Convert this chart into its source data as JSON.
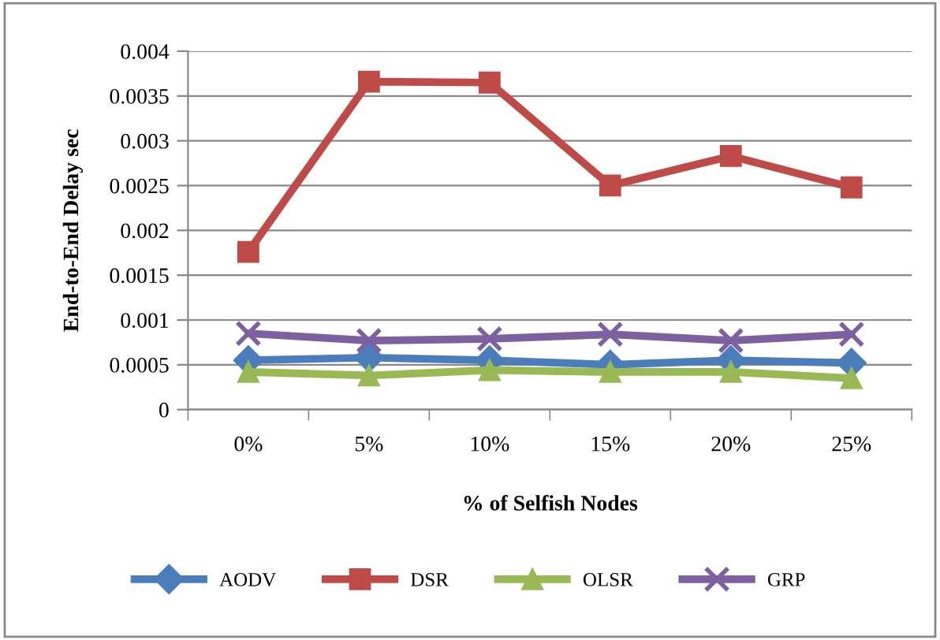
{
  "chart_data": {
    "type": "line",
    "xlabel": "% of Selfish Nodes",
    "ylabel": "End-to-End Delay sec",
    "categories": [
      "0%",
      "5%",
      "10%",
      "15%",
      "20%",
      "25%"
    ],
    "series": [
      {
        "name": "AODV",
        "color": "#4a7ebb",
        "marker": "diamond",
        "values": [
          0.00055,
          0.00058,
          0.00055,
          0.0005,
          0.00055,
          0.00052
        ]
      },
      {
        "name": "DSR",
        "color": "#be4b48",
        "marker": "square",
        "values": [
          0.00176,
          0.00366,
          0.00365,
          0.0025,
          0.00283,
          0.00248
        ]
      },
      {
        "name": "OLSR",
        "color": "#98b954",
        "marker": "triangle",
        "values": [
          0.00042,
          0.00038,
          0.00044,
          0.00042,
          0.00042,
          0.00035
        ]
      },
      {
        "name": "GRP",
        "color": "#7d60a0",
        "marker": "cross",
        "values": [
          0.00085,
          0.00077,
          0.00079,
          0.00084,
          0.00077,
          0.00084
        ]
      }
    ],
    "ylim": [
      0,
      0.004
    ],
    "yticks": [
      0,
      0.0005,
      0.001,
      0.0015,
      0.002,
      0.0025,
      0.003,
      0.0035,
      0.004
    ],
    "grid": "y",
    "legend": "bottom",
    "line_style": "solid"
  }
}
